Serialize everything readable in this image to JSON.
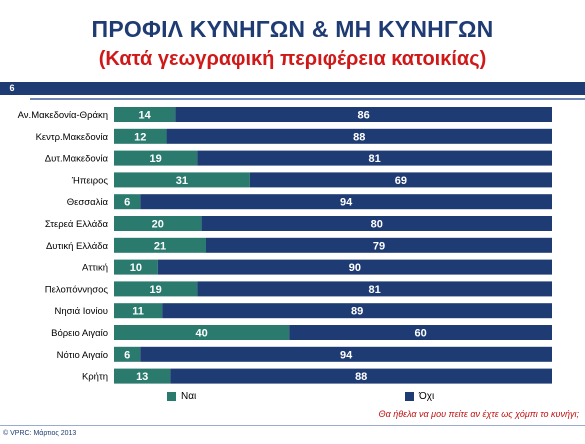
{
  "header": {
    "title": "ΠΡΟΦΙΛ ΚΥΝΗΓΩΝ & ΜΗ ΚΥΝΗΓΩΝ",
    "subtitle": "(Κατά γεωγραφική περιφέρεια κατοικίας)",
    "page_number": "6"
  },
  "chart_data": {
    "type": "bar",
    "orientation": "horizontal",
    "stacked": true,
    "percent_stacked": true,
    "categories": [
      "Αν.Μακεδονία-Θράκη",
      "Κεντρ.Μακεδονία",
      "Δυτ.Μακεδονία",
      "Ήπειρος",
      "Θεσσαλία",
      "Στερεά Ελλάδα",
      "Δυτική Ελλάδα",
      "Αττική",
      "Πελοπόννησος",
      "Νησιά Ιονίου",
      "Βόρειο Αιγαίο",
      "Νότιο Αιγαίο",
      "Κρήτη"
    ],
    "series": [
      {
        "name": "Ναι",
        "color": "#2a7a6e",
        "values": [
          14,
          12,
          19,
          31,
          6,
          20,
          21,
          10,
          19,
          11,
          40,
          6,
          13
        ]
      },
      {
        "name": "Όχι",
        "color": "#1f3b73",
        "values": [
          86,
          88,
          81,
          69,
          94,
          80,
          79,
          90,
          81,
          89,
          60,
          94,
          88
        ]
      }
    ],
    "legend_position": "bottom",
    "grid": false
  },
  "legend": {
    "yes_label": "Ναι",
    "no_label": "Όχι"
  },
  "question": "Θα ήθελα να μου πείτε αν έχτε ως χόμπι το κυνήγι;",
  "footer": "© VPRC: Μάρτιος 2013"
}
